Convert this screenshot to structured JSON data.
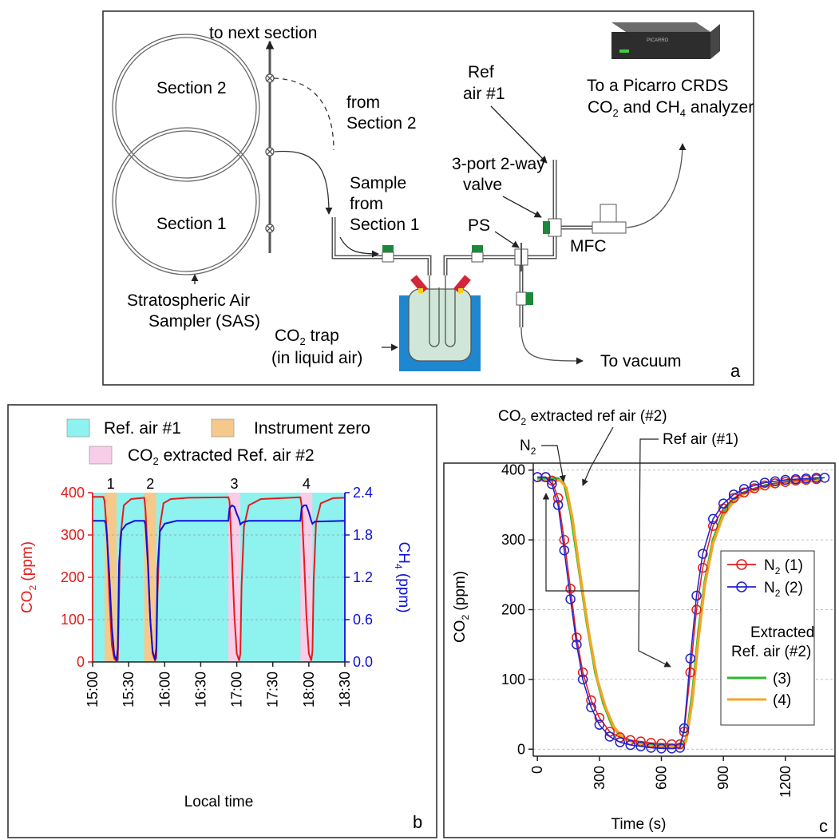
{
  "panel_a": {
    "panel_letter": "a",
    "to_next_section": "to next section",
    "section2": "Section 2",
    "section1": "Section 1",
    "from_section2": [
      "from",
      "Section 2"
    ],
    "sample_from_section1": [
      "Sample",
      "from",
      "Section 1"
    ],
    "sas_label": [
      "Stratospheric Air",
      "Sampler (SAS)"
    ],
    "co2_trap": [
      "CO",
      "2",
      " trap",
      "(in liquid air)"
    ],
    "ref_air": [
      "Ref",
      "air #1"
    ],
    "valve_label": [
      "3-port 2-way",
      "valve"
    ],
    "ps": "PS",
    "mfc": "MFC",
    "picarro_line1": "To a Picarro CRDS",
    "picarro_line2": [
      "CO",
      "2",
      " and CH",
      "4",
      " analyzer"
    ],
    "picarro_brand": "PICARRO",
    "to_vacuum": "To vacuum",
    "colors": {
      "valve_green": "#1a8a3a",
      "valve_red": "#d2263a",
      "valve_yellow": "#f0d020",
      "liquid_air": "#1f86d0",
      "trap_glass": "#cfe6d8"
    }
  },
  "panel_b": {
    "panel_letter": "b",
    "legend": {
      "ref_air": "Ref. air #1",
      "instrument_zero": "Instrument zero",
      "co2_extracted": [
        "CO",
        "2",
        " extracted Ref. air #2"
      ]
    },
    "event_numbers": [
      "1",
      "2",
      "3",
      "4"
    ],
    "colors": {
      "ref_air": "#8ef2ef",
      "instrument_zero": "#f5c98b",
      "extracted": "#f8cde8",
      "co2": "#e21c1c",
      "ch4": "#1010d8"
    },
    "chart_data": {
      "type": "line",
      "xlabel": "Local time",
      "ylabel_left": [
        "CO",
        "2",
        " (ppm)"
      ],
      "ylabel_right": [
        "CH",
        "4",
        " (ppm)"
      ],
      "x_ticks": [
        "15:00",
        "15:30",
        "16:00",
        "16:30",
        "17:00",
        "17:30",
        "18:00",
        "18:30"
      ],
      "y_left_ticks": [
        "0",
        "100",
        "200",
        "300",
        "400"
      ],
      "y_right_ticks": [
        "0.0",
        "0.6",
        "1.2",
        "1.8",
        "2.4"
      ],
      "ylim_left": [
        0,
        400
      ],
      "ylim_right": [
        0,
        2.4
      ],
      "xlim": [
        "15:00",
        "18:30"
      ],
      "bands": [
        {
          "type": "instrument_zero",
          "start": "15:10",
          "end": "15:20"
        },
        {
          "type": "instrument_zero",
          "start": "15:43",
          "end": "15:53"
        },
        {
          "type": "extracted",
          "start": "16:53",
          "end": "17:03"
        },
        {
          "type": "extracted",
          "start": "17:53",
          "end": "18:03"
        }
      ],
      "series": [
        {
          "name": "CO2",
          "axis": "left",
          "points": [
            [
              "15:00",
              390
            ],
            [
              "15:09",
              390
            ],
            [
              "15:10",
              380
            ],
            [
              "15:12",
              300
            ],
            [
              "15:14",
              150
            ],
            [
              "15:16",
              40
            ],
            [
              "15:18",
              8
            ],
            [
              "15:20",
              2
            ],
            [
              "15:21",
              5
            ],
            [
              "15:22",
              150
            ],
            [
              "15:23",
              290
            ],
            [
              "15:26",
              370
            ],
            [
              "15:32",
              385
            ],
            [
              "15:43",
              388
            ],
            [
              "15:44",
              360
            ],
            [
              "15:46",
              250
            ],
            [
              "15:48",
              100
            ],
            [
              "15:50",
              20
            ],
            [
              "15:52",
              3
            ],
            [
              "15:53",
              10
            ],
            [
              "15:54",
              160
            ],
            [
              "15:56",
              320
            ],
            [
              "15:59",
              375
            ],
            [
              "16:05",
              385
            ],
            [
              "16:20",
              388
            ],
            [
              "16:53",
              389
            ],
            [
              "16:54",
              380
            ],
            [
              "16:56",
              250
            ],
            [
              "16:58",
              110
            ],
            [
              "17:00",
              20
            ],
            [
              "17:02",
              3
            ],
            [
              "17:03",
              20
            ],
            [
              "17:04",
              180
            ],
            [
              "17:06",
              320
            ],
            [
              "17:10",
              370
            ],
            [
              "17:20",
              385
            ],
            [
              "17:53",
              389
            ],
            [
              "17:54",
              370
            ],
            [
              "17:56",
              250
            ],
            [
              "17:58",
              110
            ],
            [
              "18:00",
              20
            ],
            [
              "18:02",
              3
            ],
            [
              "18:03",
              25
            ],
            [
              "18:04",
              190
            ],
            [
              "18:06",
              330
            ],
            [
              "18:10",
              375
            ],
            [
              "18:20",
              387
            ],
            [
              "18:30",
              388
            ]
          ]
        },
        {
          "name": "CH4",
          "axis": "right",
          "points": [
            [
              "15:00",
              2.0
            ],
            [
              "15:10",
              2.0
            ],
            [
              "15:11",
              1.96
            ],
            [
              "15:12",
              1.75
            ],
            [
              "15:14",
              1.2
            ],
            [
              "15:16",
              0.5
            ],
            [
              "15:18",
              0.1
            ],
            [
              "15:20",
              0.02
            ],
            [
              "15:21",
              0.2
            ],
            [
              "15:22",
              1.4
            ],
            [
              "15:24",
              1.86
            ],
            [
              "15:28",
              1.95
            ],
            [
              "15:35",
              2.0
            ],
            [
              "15:43",
              2.0
            ],
            [
              "15:44",
              1.95
            ],
            [
              "15:46",
              1.4
            ],
            [
              "15:48",
              0.6
            ],
            [
              "15:50",
              0.15
            ],
            [
              "15:52",
              0.03
            ],
            [
              "15:53",
              0.2
            ],
            [
              "15:54",
              1.3
            ],
            [
              "15:56",
              1.85
            ],
            [
              "16:00",
              1.96
            ],
            [
              "16:10",
              2.0
            ],
            [
              "16:53",
              2.0
            ],
            [
              "16:54",
              2.18
            ],
            [
              "16:56",
              2.22
            ],
            [
              "16:58",
              2.2
            ],
            [
              "17:00",
              2.1
            ],
            [
              "17:02",
              2.02
            ],
            [
              "17:03",
              1.95
            ],
            [
              "17:05",
              1.98
            ],
            [
              "17:10",
              2.0
            ],
            [
              "17:53",
              2.0
            ],
            [
              "17:54",
              2.18
            ],
            [
              "17:56",
              2.22
            ],
            [
              "17:58",
              2.22
            ],
            [
              "18:00",
              2.12
            ],
            [
              "18:02",
              2.0
            ],
            [
              "18:03",
              1.96
            ],
            [
              "18:05",
              1.99
            ],
            [
              "18:30",
              2.0
            ]
          ]
        }
      ]
    }
  },
  "panel_c": {
    "panel_letter": "c",
    "annot_extracted": [
      "CO",
      "2",
      " extracted ref air (#2)"
    ],
    "annot_n2": [
      "N",
      "2"
    ],
    "annot_ref": "Ref air (#1)",
    "legend": {
      "n2_1": [
        "N",
        "2",
        " (1)"
      ],
      "n2_2": [
        "N",
        "2",
        " (2)"
      ],
      "extracted_title": [
        "Extracted",
        "Ref. air (#2)"
      ],
      "s3": "(3)",
      "s4": "(4)"
    },
    "colors": {
      "n2_1": "#e21c1c",
      "n2_2": "#2222c8",
      "s3": "#2cb82c",
      "s4": "#f5a623"
    },
    "chart_data": {
      "type": "line",
      "xlabel": "Time (s)",
      "ylabel": [
        "CO",
        "2",
        " (ppm)"
      ],
      "x_ticks": [
        "0",
        "300",
        "600",
        "900",
        "1200"
      ],
      "y_ticks": [
        "0",
        "100",
        "200",
        "300",
        "400"
      ],
      "xlim": [
        -20,
        1440
      ],
      "ylim": [
        -10,
        410
      ],
      "series": [
        {
          "name": "N2 (1)",
          "marker": "circle",
          "points": [
            [
              0,
              390
            ],
            [
              40,
              390
            ],
            [
              70,
              385
            ],
            [
              100,
              360
            ],
            [
              130,
              300
            ],
            [
              160,
              230
            ],
            [
              190,
              160
            ],
            [
              220,
              110
            ],
            [
              260,
              70
            ],
            [
              300,
              45
            ],
            [
              350,
              25
            ],
            [
              400,
              17
            ],
            [
              450,
              13
            ],
            [
              500,
              11
            ],
            [
              550,
              9
            ],
            [
              600,
              8
            ],
            [
              650,
              7
            ],
            [
              690,
              7
            ],
            [
              710,
              25
            ],
            [
              740,
              110
            ],
            [
              770,
              200
            ],
            [
              800,
              260
            ],
            [
              850,
              320
            ],
            [
              900,
              345
            ],
            [
              950,
              360
            ],
            [
              1000,
              368
            ],
            [
              1050,
              374
            ],
            [
              1100,
              378
            ],
            [
              1150,
              381
            ],
            [
              1200,
              383
            ],
            [
              1250,
              385
            ],
            [
              1300,
              386
            ],
            [
              1350,
              387
            ]
          ]
        },
        {
          "name": "N2 (2)",
          "marker": "circle",
          "points": [
            [
              0,
              390
            ],
            [
              40,
              390
            ],
            [
              70,
              380
            ],
            [
              100,
              350
            ],
            [
              130,
              285
            ],
            [
              160,
              215
            ],
            [
              190,
              150
            ],
            [
              220,
              100
            ],
            [
              260,
              60
            ],
            [
              300,
              35
            ],
            [
              350,
              18
            ],
            [
              400,
              10
            ],
            [
              450,
              6
            ],
            [
              500,
              4
            ],
            [
              550,
              2
            ],
            [
              600,
              1
            ],
            [
              650,
              1
            ],
            [
              690,
              2
            ],
            [
              710,
              30
            ],
            [
              740,
              130
            ],
            [
              770,
              220
            ],
            [
              800,
              280
            ],
            [
              850,
              330
            ],
            [
              900,
              352
            ],
            [
              950,
              365
            ],
            [
              1000,
              373
            ],
            [
              1050,
              378
            ],
            [
              1100,
              382
            ],
            [
              1150,
              384
            ],
            [
              1200,
              386
            ],
            [
              1250,
              387
            ],
            [
              1300,
              388
            ],
            [
              1350,
              389
            ],
            [
              1390,
              389
            ]
          ]
        },
        {
          "name": "(3)",
          "marker": "none",
          "points": [
            [
              0,
              388
            ],
            [
              100,
              388
            ],
            [
              130,
              380
            ],
            [
              160,
              340
            ],
            [
              200,
              260
            ],
            [
              240,
              180
            ],
            [
              280,
              110
            ],
            [
              320,
              65
            ],
            [
              360,
              35
            ],
            [
              400,
              20
            ],
            [
              450,
              12
            ],
            [
              500,
              8
            ],
            [
              550,
              6
            ],
            [
              600,
              5
            ],
            [
              650,
              5
            ],
            [
              700,
              5
            ],
            [
              720,
              15
            ],
            [
              750,
              80
            ],
            [
              780,
              170
            ],
            [
              810,
              240
            ],
            [
              850,
              300
            ],
            [
              900,
              340
            ],
            [
              950,
              358
            ],
            [
              1000,
              368
            ],
            [
              1100,
              378
            ],
            [
              1200,
              383
            ],
            [
              1300,
              386
            ],
            [
              1380,
              387
            ]
          ]
        },
        {
          "name": "(4)",
          "marker": "none",
          "points": [
            [
              0,
              385
            ],
            [
              110,
              385
            ],
            [
              140,
              375
            ],
            [
              170,
              330
            ],
            [
              210,
              245
            ],
            [
              250,
              165
            ],
            [
              290,
              100
            ],
            [
              330,
              60
            ],
            [
              370,
              32
            ],
            [
              410,
              18
            ],
            [
              460,
              10
            ],
            [
              510,
              6
            ],
            [
              560,
              4
            ],
            [
              610,
              3
            ],
            [
              660,
              3
            ],
            [
              700,
              3
            ],
            [
              720,
              12
            ],
            [
              750,
              70
            ],
            [
              780,
              160
            ],
            [
              810,
              235
            ],
            [
              850,
              295
            ],
            [
              900,
              335
            ],
            [
              950,
              355
            ],
            [
              1000,
              366
            ],
            [
              1100,
              376
            ],
            [
              1200,
              381
            ],
            [
              1300,
              384
            ],
            [
              1380,
              385
            ]
          ]
        }
      ]
    }
  }
}
